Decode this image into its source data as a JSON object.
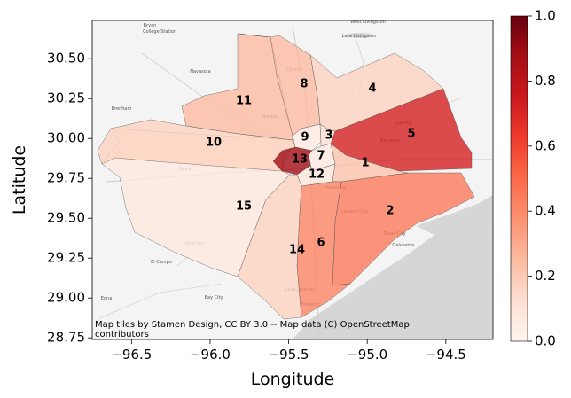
{
  "chart_data": {
    "type": "choropleth",
    "xlabel": "Longitude",
    "ylabel": "Latitude",
    "xlim": [
      -96.75,
      -94.2
    ],
    "ylim": [
      28.74,
      30.74
    ],
    "x_ticks": [
      "−96.5",
      "−96.0",
      "−95.5",
      "−95.0",
      "−94.5"
    ],
    "x_tick_values": [
      -96.5,
      -96.0,
      -95.5,
      -95.0,
      -94.5
    ],
    "y_ticks": [
      "28.75",
      "29.00",
      "29.25",
      "29.50",
      "29.75",
      "30.00",
      "30.25",
      "30.50"
    ],
    "y_tick_values": [
      28.75,
      29.0,
      29.25,
      29.5,
      29.75,
      30.0,
      30.25,
      30.5
    ],
    "colorbar": {
      "cmap": "Reds",
      "range": [
        0.0,
        1.0
      ],
      "ticks": [
        "0.0",
        "0.2",
        "0.4",
        "0.6",
        "0.8",
        "1.0"
      ],
      "tick_values": [
        0.0,
        0.2,
        0.4,
        0.6,
        0.8,
        1.0
      ]
    },
    "regions": [
      {
        "id": "1",
        "value": 0.22
      },
      {
        "id": "2",
        "value": 0.45
      },
      {
        "id": "3",
        "value": 0.12
      },
      {
        "id": "4",
        "value": 0.17
      },
      {
        "id": "5",
        "value": 0.72
      },
      {
        "id": "6",
        "value": 0.42
      },
      {
        "id": "7",
        "value": 0.06
      },
      {
        "id": "8",
        "value": 0.25
      },
      {
        "id": "9",
        "value": 0.06
      },
      {
        "id": "10",
        "value": 0.17
      },
      {
        "id": "11",
        "value": 0.25
      },
      {
        "id": "12",
        "value": 0.07
      },
      {
        "id": "13",
        "value": 0.88
      },
      {
        "id": "14",
        "value": 0.17
      },
      {
        "id": "15",
        "value": 0.08
      }
    ],
    "attribution": [
      "Map tiles by Stamen Design, CC BY 3.0 -- Map data (C) OpenStreetMap",
      "contributors"
    ],
    "basemap_labels": [
      "Bryan",
      "College Station",
      "West Livingston",
      "Lake Livingston",
      "Navasota",
      "Brenham",
      "Wharton",
      "El Campo",
      "Bay City",
      "Edna",
      "Katy",
      "Pasadena",
      "League City",
      "Texas City",
      "Galveston",
      "Lake Jackson",
      "Freeport",
      "Baytown",
      "Liberty",
      "Conroe",
      "Tomball",
      "Sealy"
    ]
  }
}
